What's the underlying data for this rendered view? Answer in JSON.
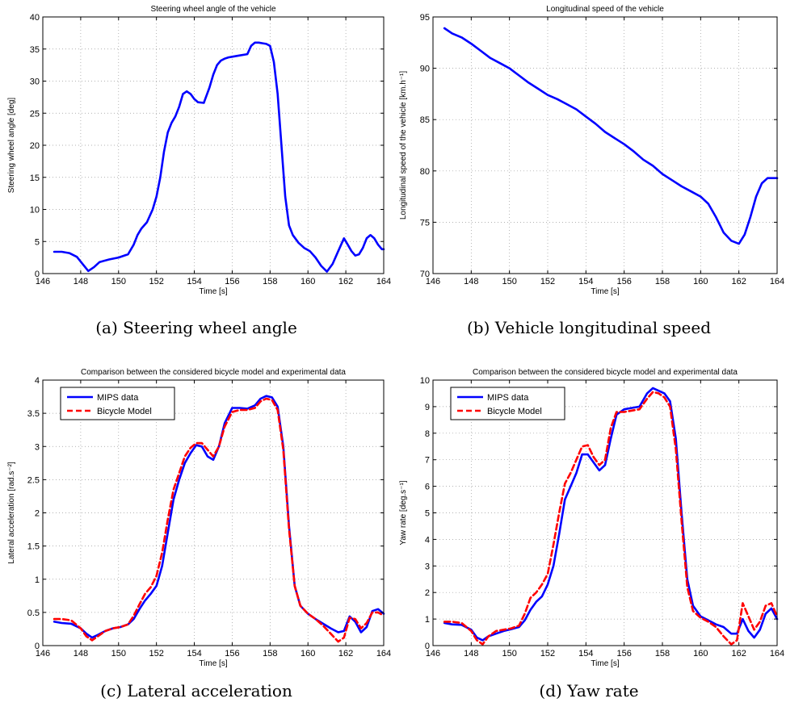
{
  "captions": {
    "a": "(a) Steering wheel angle",
    "b": "(b) Vehicle longitudinal speed",
    "c": "(c) Lateral acceleration",
    "d": "(d) Yaw rate"
  },
  "colors": {
    "mips": "#0000ff",
    "bicycle": "#ff0000"
  },
  "chart_data": [
    {
      "type": "line",
      "title": "Steering wheel angle of the vehicle",
      "xlabel": "Time [s]",
      "ylabel": "Steering wheel angle [deg]",
      "xlim": [
        146,
        164
      ],
      "ylim": [
        0,
        40
      ],
      "xticks": [
        146,
        148,
        150,
        152,
        154,
        156,
        158,
        160,
        162,
        164
      ],
      "yticks": [
        0,
        5,
        10,
        15,
        20,
        25,
        30,
        35,
        40
      ],
      "grid": true,
      "series": [
        {
          "style": "solid",
          "color": "#0000ff",
          "x": [
            146.6,
            147.0,
            147.4,
            147.8,
            148.1,
            148.4,
            148.7,
            149.0,
            149.5,
            150.0,
            150.5,
            150.8,
            151.0,
            151.2,
            151.5,
            151.8,
            152.0,
            152.2,
            152.4,
            152.6,
            152.8,
            153.0,
            153.2,
            153.4,
            153.6,
            153.8,
            154.0,
            154.2,
            154.5,
            154.8,
            155.0,
            155.2,
            155.4,
            155.6,
            155.8,
            156.0,
            156.4,
            156.8,
            157.0,
            157.2,
            157.4,
            157.6,
            157.8,
            158.0,
            158.2,
            158.4,
            158.6,
            158.8,
            159.0,
            159.2,
            159.5,
            159.8,
            160.1,
            160.4,
            160.7,
            161.0,
            161.3,
            161.6,
            161.9,
            162.1,
            162.3,
            162.5,
            162.7,
            162.9,
            163.1,
            163.3,
            163.5,
            163.7,
            163.9,
            164.0
          ],
          "y": [
            3.4,
            3.4,
            3.2,
            2.6,
            1.5,
            0.4,
            1.0,
            1.8,
            2.2,
            2.5,
            3.0,
            4.5,
            6.0,
            7.0,
            8.0,
            10.0,
            12.0,
            15.0,
            19.0,
            22.0,
            23.5,
            24.5,
            26.0,
            28.0,
            28.4,
            28.0,
            27.2,
            26.7,
            26.6,
            29.0,
            31.0,
            32.5,
            33.2,
            33.5,
            33.7,
            33.8,
            34.0,
            34.2,
            35.5,
            36.0,
            36.0,
            35.9,
            35.8,
            35.5,
            33.0,
            28.0,
            20.0,
            12.0,
            7.5,
            6.0,
            4.8,
            4.0,
            3.5,
            2.5,
            1.2,
            0.3,
            1.5,
            3.5,
            5.5,
            4.5,
            3.5,
            2.8,
            3.0,
            4.0,
            5.5,
            6.0,
            5.5,
            4.5,
            3.8,
            3.8
          ]
        }
      ]
    },
    {
      "type": "line",
      "title": "Longitudinal speed of the vehicle",
      "xlabel": "Time [s]",
      "ylabel": "Longitudinal speed of the vehicle [km.h⁻¹]",
      "xlim": [
        146,
        164
      ],
      "ylim": [
        70,
        95
      ],
      "xticks": [
        146,
        148,
        150,
        152,
        154,
        156,
        158,
        160,
        162,
        164
      ],
      "yticks": [
        70,
        75,
        80,
        85,
        90,
        95
      ],
      "grid": true,
      "series": [
        {
          "style": "solid",
          "color": "#0000ff",
          "x": [
            146.6,
            147.0,
            147.5,
            148.0,
            148.5,
            149.0,
            149.5,
            150.0,
            150.5,
            151.0,
            151.5,
            152.0,
            152.5,
            153.0,
            153.5,
            154.0,
            154.5,
            155.0,
            155.5,
            156.0,
            156.5,
            157.0,
            157.5,
            158.0,
            158.5,
            159.0,
            159.5,
            160.0,
            160.4,
            160.8,
            161.2,
            161.6,
            162.0,
            162.3,
            162.6,
            162.9,
            163.2,
            163.5,
            163.8,
            164.0
          ],
          "y": [
            93.9,
            93.4,
            93.0,
            92.4,
            91.7,
            91.0,
            90.5,
            90.0,
            89.3,
            88.6,
            88.0,
            87.4,
            87.0,
            86.5,
            86.0,
            85.3,
            84.6,
            83.8,
            83.2,
            82.6,
            81.9,
            81.1,
            80.5,
            79.7,
            79.1,
            78.5,
            78.0,
            77.5,
            76.8,
            75.5,
            74.0,
            73.2,
            72.9,
            73.8,
            75.5,
            77.5,
            78.8,
            79.3,
            79.3,
            79.3
          ]
        }
      ]
    },
    {
      "type": "line",
      "title": "Comparison between the considered bicycle model and experimental data",
      "xlabel": "Time [s]",
      "ylabel": "Lateral acceleration [rad.s⁻²]",
      "xlim": [
        146,
        164
      ],
      "ylim": [
        0,
        4
      ],
      "xticks": [
        146,
        148,
        150,
        152,
        154,
        156,
        158,
        160,
        162,
        164
      ],
      "yticks": [
        0,
        0.5,
        1,
        1.5,
        2,
        2.5,
        3,
        3.5,
        4
      ],
      "grid": true,
      "legend": "top-left",
      "series": [
        {
          "name": "MIPS data",
          "style": "solid",
          "color": "#0000ff",
          "x": [
            146.6,
            147.0,
            147.5,
            148.0,
            148.3,
            148.6,
            148.9,
            149.3,
            149.7,
            150.1,
            150.5,
            150.8,
            151.1,
            151.4,
            151.7,
            152.0,
            152.3,
            152.6,
            152.9,
            153.2,
            153.5,
            153.8,
            154.1,
            154.4,
            154.7,
            155.0,
            155.3,
            155.6,
            156.0,
            156.4,
            156.8,
            157.2,
            157.5,
            157.8,
            158.1,
            158.4,
            158.7,
            159.0,
            159.3,
            159.6,
            160.0,
            160.4,
            160.8,
            161.2,
            161.6,
            161.9,
            162.2,
            162.5,
            162.8,
            163.1,
            163.4,
            163.7,
            164.0
          ],
          "y": [
            0.36,
            0.34,
            0.33,
            0.26,
            0.18,
            0.12,
            0.16,
            0.22,
            0.26,
            0.28,
            0.32,
            0.4,
            0.55,
            0.68,
            0.78,
            0.9,
            1.2,
            1.7,
            2.2,
            2.5,
            2.75,
            2.9,
            3.02,
            3.0,
            2.85,
            2.8,
            3.0,
            3.35,
            3.58,
            3.58,
            3.57,
            3.62,
            3.72,
            3.76,
            3.74,
            3.6,
            3.0,
            1.8,
            0.9,
            0.6,
            0.48,
            0.4,
            0.33,
            0.26,
            0.2,
            0.22,
            0.44,
            0.36,
            0.2,
            0.28,
            0.52,
            0.55,
            0.48
          ]
        },
        {
          "name": "Bicycle Model",
          "style": "dashed",
          "color": "#ff0000",
          "x": [
            146.6,
            147.0,
            147.5,
            148.0,
            148.3,
            148.6,
            148.9,
            149.3,
            149.7,
            150.1,
            150.5,
            150.8,
            151.1,
            151.4,
            151.7,
            152.0,
            152.3,
            152.6,
            152.9,
            153.2,
            153.5,
            153.8,
            154.1,
            154.4,
            154.7,
            155.0,
            155.3,
            155.6,
            156.0,
            156.4,
            156.8,
            157.2,
            157.5,
            157.8,
            158.1,
            158.4,
            158.7,
            159.0,
            159.3,
            159.6,
            160.0,
            160.4,
            160.8,
            161.2,
            161.6,
            161.9,
            162.2,
            162.5,
            162.8,
            163.1,
            163.4,
            163.7,
            164.0
          ],
          "y": [
            0.4,
            0.4,
            0.38,
            0.26,
            0.14,
            0.08,
            0.14,
            0.22,
            0.26,
            0.28,
            0.32,
            0.45,
            0.62,
            0.78,
            0.88,
            1.05,
            1.4,
            1.9,
            2.35,
            2.6,
            2.85,
            2.98,
            3.05,
            3.05,
            2.95,
            2.85,
            3.0,
            3.3,
            3.52,
            3.55,
            3.55,
            3.58,
            3.68,
            3.72,
            3.7,
            3.55,
            2.95,
            1.75,
            0.9,
            0.6,
            0.48,
            0.4,
            0.3,
            0.18,
            0.06,
            0.12,
            0.42,
            0.4,
            0.26,
            0.34,
            0.5,
            0.5,
            0.45
          ]
        }
      ]
    },
    {
      "type": "line",
      "title": "Comparison between the considered bicycle model and experimental data",
      "xlabel": "Time [s]",
      "ylabel": "Yaw rate [deg.s⁻¹]",
      "xlim": [
        146,
        164
      ],
      "ylim": [
        0,
        10
      ],
      "xticks": [
        146,
        148,
        150,
        152,
        154,
        156,
        158,
        160,
        162,
        164
      ],
      "yticks": [
        0,
        1,
        2,
        3,
        4,
        5,
        6,
        7,
        8,
        9,
        10
      ],
      "grid": true,
      "legend": "top-left",
      "series": [
        {
          "name": "MIPS data",
          "style": "solid",
          "color": "#0000ff",
          "x": [
            146.6,
            147.0,
            147.5,
            148.0,
            148.3,
            148.6,
            148.9,
            149.3,
            149.7,
            150.1,
            150.5,
            150.8,
            151.1,
            151.4,
            151.7,
            152.0,
            152.3,
            152.6,
            152.9,
            153.2,
            153.5,
            153.8,
            154.1,
            154.4,
            154.7,
            155.0,
            155.3,
            155.6,
            156.0,
            156.4,
            156.8,
            157.2,
            157.5,
            157.8,
            158.1,
            158.4,
            158.7,
            159.0,
            159.3,
            159.6,
            160.0,
            160.4,
            160.8,
            161.2,
            161.6,
            161.9,
            162.2,
            162.5,
            162.8,
            163.1,
            163.4,
            163.7,
            164.0
          ],
          "y": [
            0.85,
            0.8,
            0.78,
            0.6,
            0.3,
            0.2,
            0.35,
            0.45,
            0.55,
            0.62,
            0.7,
            0.95,
            1.35,
            1.65,
            1.85,
            2.3,
            3.0,
            4.2,
            5.5,
            6.0,
            6.5,
            7.2,
            7.2,
            6.9,
            6.6,
            6.8,
            7.8,
            8.7,
            8.9,
            8.95,
            9.0,
            9.5,
            9.7,
            9.6,
            9.5,
            9.2,
            7.8,
            5.0,
            2.5,
            1.5,
            1.1,
            0.95,
            0.8,
            0.7,
            0.45,
            0.45,
            1.0,
            0.55,
            0.3,
            0.6,
            1.2,
            1.4,
            1.0
          ]
        },
        {
          "name": "Bicycle Model",
          "style": "dashed",
          "color": "#ff0000",
          "x": [
            146.6,
            147.0,
            147.5,
            148.0,
            148.3,
            148.6,
            148.9,
            149.3,
            149.7,
            150.1,
            150.5,
            150.8,
            151.1,
            151.4,
            151.7,
            152.0,
            152.3,
            152.6,
            152.9,
            153.2,
            153.5,
            153.8,
            154.1,
            154.4,
            154.7,
            155.0,
            155.3,
            155.6,
            156.0,
            156.4,
            156.8,
            157.2,
            157.5,
            157.8,
            158.1,
            158.4,
            158.7,
            159.0,
            159.3,
            159.6,
            160.0,
            160.4,
            160.8,
            161.2,
            161.6,
            161.9,
            162.2,
            162.5,
            162.8,
            163.1,
            163.4,
            163.7,
            164.0
          ],
          "y": [
            0.9,
            0.9,
            0.85,
            0.55,
            0.2,
            0.05,
            0.35,
            0.55,
            0.6,
            0.65,
            0.75,
            1.2,
            1.8,
            2.0,
            2.3,
            2.7,
            3.8,
            5.0,
            6.1,
            6.5,
            7.0,
            7.5,
            7.55,
            7.1,
            6.8,
            7.0,
            8.2,
            8.8,
            8.8,
            8.85,
            8.9,
            9.3,
            9.55,
            9.5,
            9.35,
            9.0,
            7.4,
            4.7,
            2.2,
            1.3,
            1.05,
            0.9,
            0.7,
            0.35,
            0.05,
            0.2,
            1.6,
            1.1,
            0.6,
            0.9,
            1.5,
            1.6,
            1.1
          ]
        }
      ]
    }
  ]
}
